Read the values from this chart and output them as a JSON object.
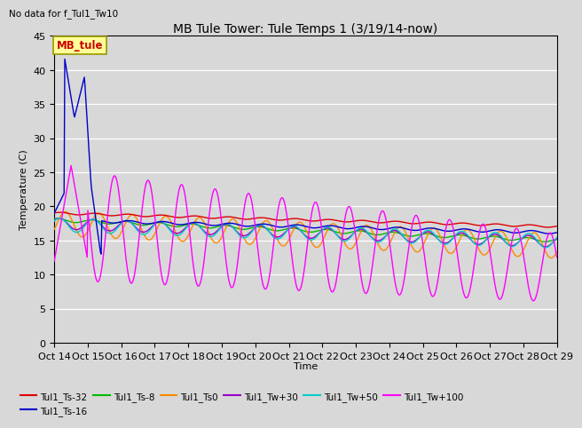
{
  "title": "MB Tule Tower: Tule Temps 1 (3/19/14-now)",
  "subtitle": "No data for f_Tul1_Tw10",
  "xlabel": "Time",
  "ylabel": "Temperature (C)",
  "ylim": [
    0,
    45
  ],
  "n_days": 15,
  "xtick_labels": [
    "Oct 14",
    "Oct 15",
    "Oct 16",
    "Oct 17",
    "Oct 18",
    "Oct 19",
    "Oct 20",
    "Oct 21",
    "Oct 22",
    "Oct 23",
    "Oct 24",
    "Oct 25",
    "Oct 26",
    "Oct 27",
    "Oct 28",
    "Oct 29"
  ],
  "bg_color": "#d8d8d8",
  "plot_bg_color": "#d8d8d8",
  "series_colors": {
    "Tul1_Ts-32": "#dd0000",
    "Tul1_Ts-16": "#0000cc",
    "Tul1_Ts-8": "#00bb00",
    "Tul1_Ts0": "#ff8800",
    "Tul1_Tw+30": "#9900cc",
    "Tul1_Tw+50": "#00cccc",
    "Tul1_Tw+100": "#ff00ff"
  },
  "legend_box_color": "#ffff99",
  "legend_box_text": "MB_tule",
  "legend_box_text_color": "#cc0000",
  "legend_box_edge_color": "#999900"
}
